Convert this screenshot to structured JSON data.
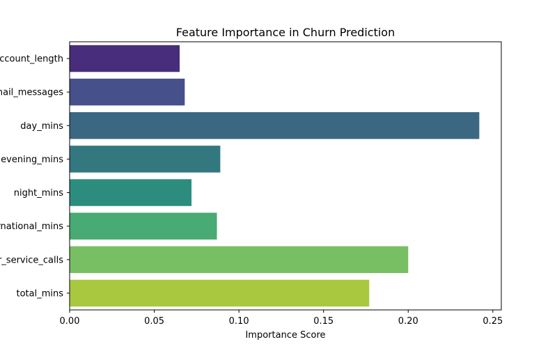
{
  "chart_data": {
    "type": "bar",
    "orientation": "horizontal",
    "title": "Feature Importance in Churn Prediction",
    "xlabel": "Importance Score",
    "ylabel": "",
    "xlim": [
      0,
      0.255
    ],
    "xticks": [
      "0.00",
      "0.05",
      "0.10",
      "0.15",
      "0.20",
      "0.25"
    ],
    "grid": false,
    "categories": [
      "account_length",
      "voice_mail_messages",
      "day_mins",
      "evening_mins",
      "night_mins",
      "international_mins",
      "customer_service_calls",
      "total_mins"
    ],
    "values": [
      0.065,
      0.068,
      0.242,
      0.089,
      0.072,
      0.087,
      0.2,
      0.177
    ],
    "colors": [
      "#472d7b",
      "#46508a",
      "#3b6782",
      "#34787f",
      "#2c8d7e",
      "#48ab74",
      "#78be62",
      "#a9c840"
    ]
  }
}
